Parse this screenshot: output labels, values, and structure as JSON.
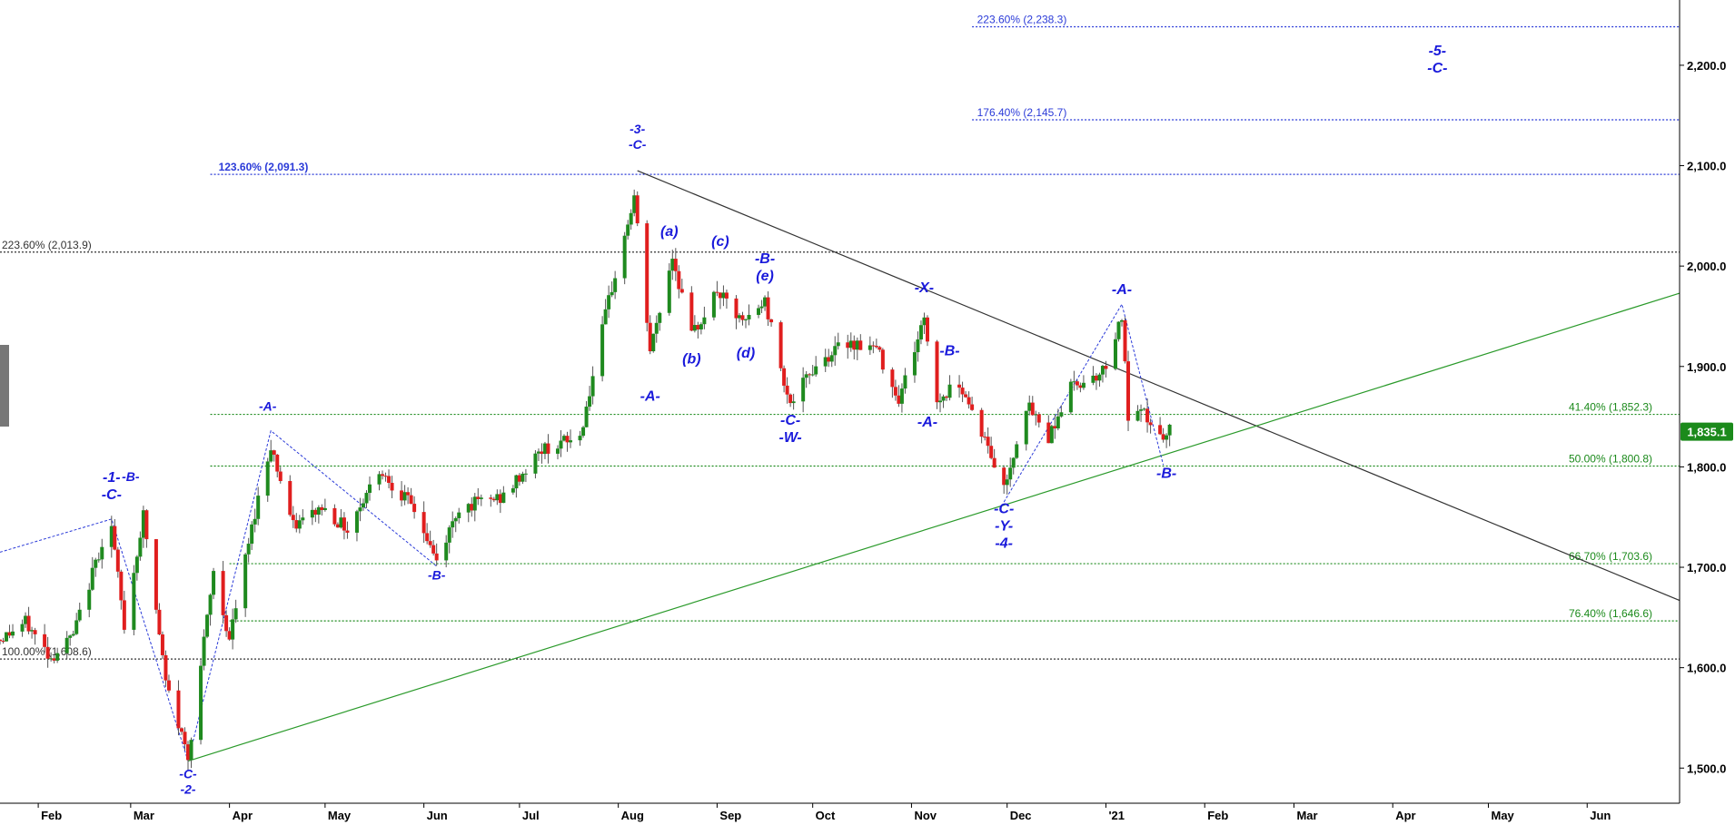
{
  "colors": {
    "bull": "#1f8a1f",
    "bear": "#e01e1e",
    "wick": "#555555",
    "fib_blue": "#2a3ad8",
    "fib_green": "#1b8a1b",
    "fib_black": "#333333",
    "label_blue": "#1a1adb",
    "trend_black": "#333333",
    "trend_green": "#2a9a2a",
    "price_tag": "#1b8a1b"
  },
  "chart_data": {
    "type": "candlestick",
    "x_start": "2020-01-20",
    "x_end": "2021-06-30",
    "x_tick_labels": [
      {
        "label": "Feb",
        "date": "2020-02-01"
      },
      {
        "label": "Mar",
        "date": "2020-03-01"
      },
      {
        "label": "Apr",
        "date": "2020-04-01"
      },
      {
        "label": "May",
        "date": "2020-05-01"
      },
      {
        "label": "Jun",
        "date": "2020-06-01"
      },
      {
        "label": "Jul",
        "date": "2020-07-01"
      },
      {
        "label": "Aug",
        "date": "2020-08-01"
      },
      {
        "label": "Sep",
        "date": "2020-09-01"
      },
      {
        "label": "Oct",
        "date": "2020-10-01"
      },
      {
        "label": "Nov",
        "date": "2020-11-01"
      },
      {
        "label": "Dec",
        "date": "2020-12-01"
      },
      {
        "label": "'21",
        "date": "2021-01-01"
      },
      {
        "label": "Feb",
        "date": "2021-02-01"
      },
      {
        "label": "Mar",
        "date": "2021-03-01"
      },
      {
        "label": "Apr",
        "date": "2021-04-01"
      },
      {
        "label": "May",
        "date": "2021-05-01"
      },
      {
        "label": "Jun",
        "date": "2021-06-01"
      }
    ],
    "y_min": 1465,
    "y_max": 2265,
    "y_ticks": [
      {
        "label": "1,500.0",
        "value": 1500
      },
      {
        "label": "1,600.0",
        "value": 1600
      },
      {
        "label": "1,700.0",
        "value": 1700
      },
      {
        "label": "1,800.0",
        "value": 1800
      },
      {
        "label": "1,900.0",
        "value": 1900
      },
      {
        "label": "2,000.0",
        "value": 2000
      },
      {
        "label": "2,100.0",
        "value": 2100
      },
      {
        "label": "2,200.0",
        "value": 2200
      }
    ],
    "last_price": {
      "label": "1,835.1",
      "value": 1835.1
    },
    "fib_levels": [
      {
        "label": "223.60% (2,238.3)",
        "value": 2238.3,
        "from": "2020-11-20",
        "color": "blue",
        "label_at": "2020-11-21",
        "style": "dotted"
      },
      {
        "label": "176.40% (2,145.7)",
        "value": 2145.7,
        "from": "2020-11-20",
        "color": "blue",
        "label_at": "2020-11-21",
        "style": "dotted"
      },
      {
        "label": "123.60% (2,091.3)",
        "value": 2091.3,
        "from": "2020-03-26",
        "color": "blue",
        "label_at": "2020-03-28",
        "style": "dotted",
        "bold": true
      },
      {
        "label": "223.60% (2,013.9)",
        "value": 2013.9,
        "from": "2020-01-20",
        "color": "black",
        "label_at": "2020-01-20",
        "style": "dotted"
      },
      {
        "label": "41.40% (1,852.3)",
        "value": 1852.3,
        "from": "2020-03-26",
        "color": "green",
        "label_at": "2021-03-05",
        "style": "dotted"
      },
      {
        "label": "50.00% (1,800.8)",
        "value": 1800.8,
        "from": "2020-03-26",
        "color": "green",
        "label_at": "2021-03-05",
        "style": "dotted"
      },
      {
        "label": "66.70% (1,703.6)",
        "value": 1703.6,
        "from": "2020-04-01",
        "color": "green",
        "label_at": "2021-03-05",
        "style": "dotted"
      },
      {
        "label": "76.40% (1,646.6)",
        "value": 1646.6,
        "from": "2020-04-01",
        "color": "green",
        "label_at": "2021-03-05",
        "style": "dotted"
      },
      {
        "label": "100.00% (1,608.6)",
        "value": 1608.6,
        "from": "2020-01-20",
        "color": "black",
        "label_at": "2020-01-20",
        "style": "dotted"
      }
    ],
    "trendlines": [
      {
        "name": "descending-trendline",
        "color": "black",
        "points": [
          {
            "date": "2020-08-07",
            "value": 2095
          },
          {
            "date": "2021-06-30",
            "value": 1667
          }
        ]
      },
      {
        "name": "ascending-trendline",
        "color": "green",
        "points": [
          {
            "date": "2020-03-19",
            "value": 1507
          },
          {
            "date": "2021-06-30",
            "value": 1973
          }
        ]
      }
    ],
    "wave_lines": [
      {
        "name": "wave-line-1",
        "points": [
          {
            "date": "2020-01-20",
            "value": 1715
          },
          {
            "date": "2020-02-24",
            "value": 1748
          },
          {
            "date": "2020-03-19",
            "value": 1507
          },
          {
            "date": "2020-04-14",
            "value": 1836
          },
          {
            "date": "2020-06-05",
            "value": 1701
          }
        ]
      },
      {
        "name": "wave-line-2",
        "points": [
          {
            "date": "2020-11-30",
            "value": 1765
          },
          {
            "date": "2021-01-06",
            "value": 1962
          },
          {
            "date": "2021-01-19",
            "value": 1802
          }
        ]
      }
    ],
    "wave_labels": [
      {
        "lines": [
          "-1-",
          "-C-"
        ],
        "date": "2020-02-24",
        "value": 1785,
        "size": 16
      },
      {
        "lines": [
          "-B-"
        ],
        "date": "2020-03-01",
        "value": 1786,
        "size": 14
      },
      {
        "lines": [
          "-C-",
          "-2-"
        ],
        "date": "2020-03-19",
        "value": 1490,
        "size": 14
      },
      {
        "lines": [
          "-A-"
        ],
        "date": "2020-04-13",
        "value": 1856,
        "size": 14
      },
      {
        "lines": [
          "-B-"
        ],
        "date": "2020-06-05",
        "value": 1688,
        "size": 14
      },
      {
        "lines": [
          "-3-",
          "-C-"
        ],
        "date": "2020-08-07",
        "value": 2132,
        "size": 14
      },
      {
        "lines": [
          "-A-"
        ],
        "date": "2020-08-11",
        "value": 1866,
        "size": 16
      },
      {
        "lines": [
          "(a)"
        ],
        "date": "2020-08-17",
        "value": 2030,
        "size": 16
      },
      {
        "lines": [
          "(b)"
        ],
        "date": "2020-08-24",
        "value": 1903,
        "size": 16
      },
      {
        "lines": [
          "(c)"
        ],
        "date": "2020-09-02",
        "value": 2020,
        "size": 16
      },
      {
        "lines": [
          "(d)"
        ],
        "date": "2020-09-10",
        "value": 1909,
        "size": 16
      },
      {
        "lines": [
          "-B-",
          "(e)"
        ],
        "date": "2020-09-16",
        "value": 2003,
        "size": 16
      },
      {
        "lines": [
          "-C-",
          "-W-"
        ],
        "date": "2020-09-24",
        "value": 1842,
        "size": 16
      },
      {
        "lines": [
          "-X-"
        ],
        "date": "2020-11-05",
        "value": 1974,
        "size": 16
      },
      {
        "lines": [
          "-A-"
        ],
        "date": "2020-11-06",
        "value": 1840,
        "size": 16
      },
      {
        "lines": [
          "-B-"
        ],
        "date": "2020-11-13",
        "value": 1911,
        "size": 16
      },
      {
        "lines": [
          "-C-",
          "-Y-",
          "-4-"
        ],
        "date": "2020-11-30",
        "value": 1754,
        "size": 16
      },
      {
        "lines": [
          "-A-"
        ],
        "date": "2021-01-06",
        "value": 1972,
        "size": 16
      },
      {
        "lines": [
          "-B-"
        ],
        "date": "2021-01-20",
        "value": 1789,
        "size": 16
      },
      {
        "lines": [
          "-5-",
          "-C-"
        ],
        "date": "2021-04-15",
        "value": 2210,
        "size": 16
      }
    ],
    "anchors": [
      {
        "date": "2020-01-20",
        "value": 1628
      },
      {
        "date": "2020-01-28",
        "value": 1645
      },
      {
        "date": "2020-02-05",
        "value": 1610
      },
      {
        "date": "2020-02-12",
        "value": 1632
      },
      {
        "date": "2020-02-21",
        "value": 1725
      },
      {
        "date": "2020-02-24",
        "value": 1740
      },
      {
        "date": "2020-02-28",
        "value": 1640
      },
      {
        "date": "2020-03-05",
        "value": 1752
      },
      {
        "date": "2020-03-12",
        "value": 1585
      },
      {
        "date": "2020-03-19",
        "value": 1512
      },
      {
        "date": "2020-03-24",
        "value": 1625
      },
      {
        "date": "2020-03-27",
        "value": 1695
      },
      {
        "date": "2020-04-01",
        "value": 1628
      },
      {
        "date": "2020-04-09",
        "value": 1755
      },
      {
        "date": "2020-04-14",
        "value": 1822
      },
      {
        "date": "2020-04-21",
        "value": 1740
      },
      {
        "date": "2020-04-30",
        "value": 1760
      },
      {
        "date": "2020-05-08",
        "value": 1738
      },
      {
        "date": "2020-05-18",
        "value": 1798
      },
      {
        "date": "2020-05-29",
        "value": 1758
      },
      {
        "date": "2020-06-05",
        "value": 1705
      },
      {
        "date": "2020-06-12",
        "value": 1760
      },
      {
        "date": "2020-06-26",
        "value": 1770
      },
      {
        "date": "2020-07-08",
        "value": 1817
      },
      {
        "date": "2020-07-20",
        "value": 1830
      },
      {
        "date": "2020-07-29",
        "value": 1965
      },
      {
        "date": "2020-08-06",
        "value": 2068
      },
      {
        "date": "2020-08-11",
        "value": 1915
      },
      {
        "date": "2020-08-18",
        "value": 2010
      },
      {
        "date": "2020-08-24",
        "value": 1930
      },
      {
        "date": "2020-09-01",
        "value": 1975
      },
      {
        "date": "2020-09-09",
        "value": 1942
      },
      {
        "date": "2020-09-16",
        "value": 1965
      },
      {
        "date": "2020-09-24",
        "value": 1862
      },
      {
        "date": "2020-10-02",
        "value": 1902
      },
      {
        "date": "2020-10-12",
        "value": 1925
      },
      {
        "date": "2020-10-21",
        "value": 1918
      },
      {
        "date": "2020-10-28",
        "value": 1868
      },
      {
        "date": "2020-11-05",
        "value": 1948
      },
      {
        "date": "2020-11-09",
        "value": 1865
      },
      {
        "date": "2020-11-16",
        "value": 1885
      },
      {
        "date": "2020-11-23",
        "value": 1835
      },
      {
        "date": "2020-11-30",
        "value": 1778
      },
      {
        "date": "2020-12-07",
        "value": 1862
      },
      {
        "date": "2020-12-14",
        "value": 1830
      },
      {
        "date": "2020-12-21",
        "value": 1880
      },
      {
        "date": "2020-12-31",
        "value": 1895
      },
      {
        "date": "2021-01-06",
        "value": 1950
      },
      {
        "date": "2021-01-08",
        "value": 1848
      },
      {
        "date": "2021-01-13",
        "value": 1852
      },
      {
        "date": "2021-01-19",
        "value": 1825
      },
      {
        "date": "2021-01-21",
        "value": 1835
      }
    ]
  }
}
